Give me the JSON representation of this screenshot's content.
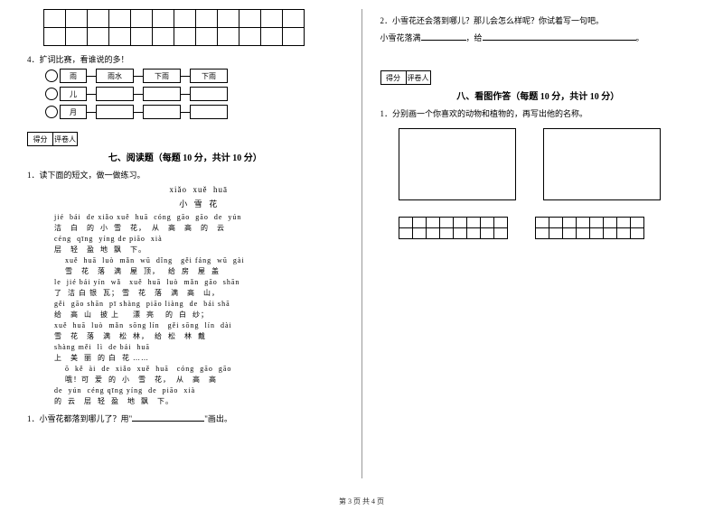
{
  "left": {
    "grid": {
      "rows": 2,
      "cols": 12
    },
    "q4": "4．扩词比赛，看谁说的多！",
    "chains": [
      {
        "start": "雨",
        "boxes": [
          "雨水",
          "下雨",
          "下雨"
        ]
      },
      {
        "start": "儿",
        "boxes": [
          "",
          "",
          ""
        ]
      },
      {
        "start": "月",
        "boxes": [
          "",
          "",
          ""
        ]
      }
    ],
    "score_labels": [
      "得分",
      "评卷人"
    ],
    "section7_title": "七、阅读题（每题 10 分，共计 10 分）",
    "q7_intro": "1．读下面的短文，做一做练习。",
    "poem_pinyin_title": "xiǎo  xuě  huā",
    "poem_title": "小  雪  花",
    "poem_lines": [
      "jié  bái  de xiǎo xuě  huā  cóng  gāo  gāo  de  yún",
      "洁   白   的  小  雪   花，  从   高   高   的   云",
      "céng  qīng  yíng de piāo  xià",
      "层   轻   盈  地  飘   下。",
      "    xuě  huā  luò  mǎn  wū  dǐng   gěi fáng  wū  gài",
      "    雪   花   落   满   屋  顶，   给  房   屋  盖",
      "le  jié bái yín  wǎ   xuě  huā  luò  mǎn  gāo  shān",
      "了  洁 白 银  瓦； 雪   花   落   满   高   山，",
      "gěi  gāo shān  pī shàng  piāo liàng  de  bái shā",
      "给   高  山   披 上     漂  亮    的  白  纱；",
      "xuě  huā  luò  mǎn  sōng lín   gěi sōng  lín  dài",
      "雪   花   落   满   松  林，  给  松   林  戴",
      "shàng měi  lì  de bái  huā",
      "上   美  丽  的 白  花 ……",
      "    ō  kě  ài  de  xiǎo  xuě  huā   cóng  gāo  gāo",
      "    哦！可  爱  的  小   雪   花，  从   高   高",
      "de  yún  céng qīng yíng  de  piāo  xià",
      "的  云   层  轻  盈   地  飘   下。"
    ],
    "q7_1_prefix": "1．小雪花都落到哪儿了？用\"",
    "q7_1_suffix": "\"画出。"
  },
  "right": {
    "q7_2": "2．小雪花还会落到哪儿？那儿会怎么样呢？你试着写一句吧。",
    "q7_2_line2_prefix": "小雪花落满",
    "q7_2_line2_mid": "，给",
    "score_labels": [
      "得分",
      "评卷人"
    ],
    "section8_title": "八、看图作答（每题 10 分，共计 10 分）",
    "q8_intro": "1．分别画一个你喜欢的动物和植物的，再写出他的名称。",
    "answer_grid": {
      "rows": 2,
      "cols": 8
    }
  },
  "footer": "第 3 页  共 4 页"
}
